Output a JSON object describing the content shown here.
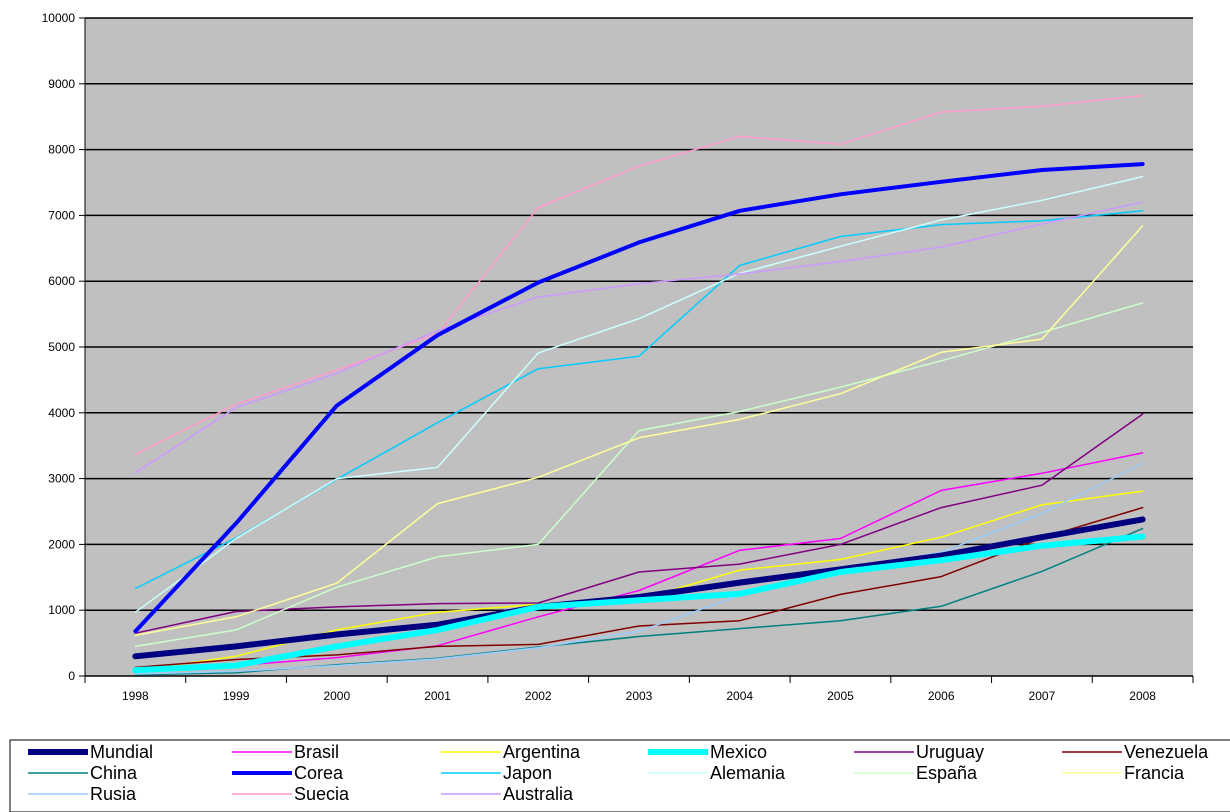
{
  "chart_data": {
    "type": "line",
    "title": "",
    "xlabel": "",
    "ylabel": "",
    "categories": [
      "1998",
      "1999",
      "2000",
      "2001",
      "2002",
      "2003",
      "2004",
      "2005",
      "2006",
      "2007",
      "2008"
    ],
    "ylim": [
      0,
      10000
    ],
    "yticks": [
      0,
      1000,
      2000,
      3000,
      4000,
      5000,
      6000,
      7000,
      8000,
      9000,
      10000
    ],
    "grid": "horizontal",
    "plot_background": "#c0c0c0",
    "legend_position": "bottom",
    "series": [
      {
        "name": "Mundial",
        "color": "#000080",
        "width": "heavy",
        "values": [
          300,
          450,
          630,
          780,
          1050,
          1200,
          1420,
          1620,
          1830,
          2110,
          2380
        ]
      },
      {
        "name": "Brasil",
        "color": "#ff00ff",
        "width": "thin",
        "values": [
          120,
          160,
          280,
          460,
          900,
          1300,
          1910,
          2090,
          2820,
          3080,
          3390
        ]
      },
      {
        "name": "Argentina",
        "color": "#ffff00",
        "width": "thin",
        "values": [
          80,
          300,
          700,
          970,
          1090,
          1160,
          1610,
          1770,
          2110,
          2600,
          2810
        ]
      },
      {
        "name": "Mexico",
        "color": "#00ffff",
        "width": "heavy",
        "values": [
          90,
          160,
          450,
          700,
          1050,
          1150,
          1250,
          1580,
          1760,
          1980,
          2120
        ]
      },
      {
        "name": "Uruguay",
        "color": "#800080",
        "width": "thin",
        "values": [
          650,
          980,
          1050,
          1100,
          1110,
          1580,
          1700,
          2000,
          2560,
          2900,
          3980
        ]
      },
      {
        "name": "Venezuela",
        "color": "#800000",
        "width": "thin",
        "values": [
          130,
          250,
          320,
          450,
          480,
          760,
          840,
          1240,
          1510,
          2100,
          2560
        ]
      },
      {
        "name": "China",
        "color": "#008080",
        "width": "thin",
        "values": [
          20,
          50,
          170,
          270,
          440,
          600,
          720,
          840,
          1060,
          1590,
          2240
        ]
      },
      {
        "name": "Corea",
        "color": "#0000ff",
        "width": "medium",
        "values": [
          680,
          2320,
          4110,
          5180,
          5980,
          6590,
          7070,
          7320,
          7510,
          7690,
          7780
        ]
      },
      {
        "name": "Japon",
        "color": "#00ccff",
        "width": "thin",
        "values": [
          1330,
          2100,
          2990,
          3850,
          4670,
          4860,
          6240,
          6680,
          6860,
          6920,
          7070
        ]
      },
      {
        "name": "Alemania",
        "color": "#ccffff",
        "width": "thin",
        "values": [
          970,
          2090,
          3000,
          3170,
          4910,
          5430,
          6120,
          6530,
          6930,
          7230,
          7590
        ]
      },
      {
        "name": "España",
        "color": "#ccffcc",
        "width": "thin",
        "values": [
          450,
          700,
          1350,
          1810,
          2000,
          3730,
          4020,
          4390,
          4790,
          5220,
          5670
        ]
      },
      {
        "name": "Francia",
        "color": "#ffff99",
        "width": "thin",
        "values": [
          620,
          900,
          1410,
          2620,
          3020,
          3620,
          3900,
          4290,
          4920,
          5120,
          6840
        ]
      },
      {
        "name": "Rusia",
        "color": "#99ccff",
        "width": "thin",
        "values": [
          30,
          70,
          160,
          260,
          430,
          680,
          1220,
          1620,
          1880,
          2470,
          3230
        ]
      },
      {
        "name": "Suecia",
        "color": "#ff99cc",
        "width": "thin",
        "values": [
          3370,
          4130,
          4650,
          5200,
          7120,
          7750,
          8200,
          8080,
          8570,
          8660,
          8820
        ]
      },
      {
        "name": "Australia",
        "color": "#cc99ff",
        "width": "thin",
        "values": [
          3090,
          4080,
          4600,
          5250,
          5760,
          5960,
          6110,
          6300,
          6520,
          6870,
          7200
        ]
      }
    ]
  }
}
